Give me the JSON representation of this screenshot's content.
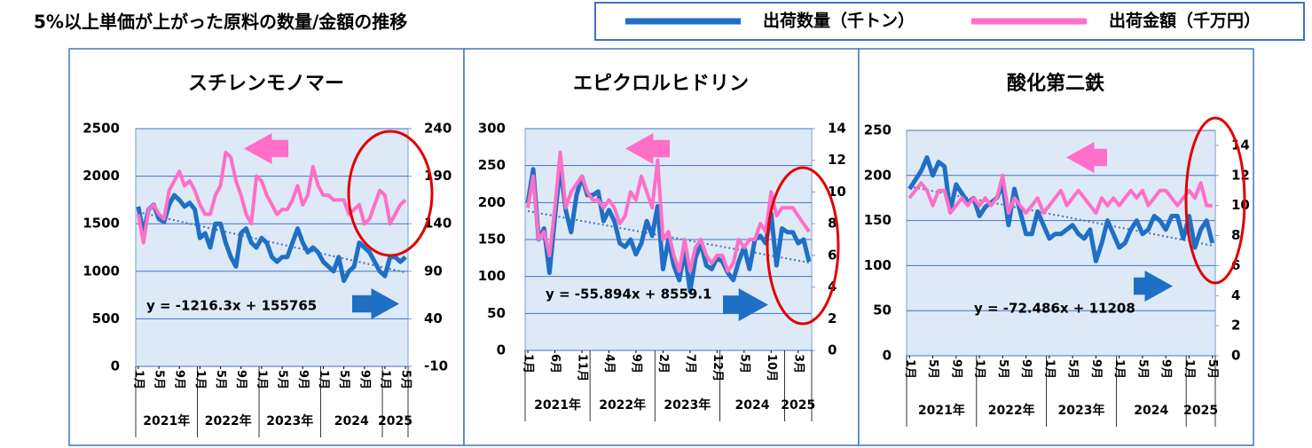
{
  "title": "5%以上単価が上がった原料の数量/金額の推移",
  "legend": [
    {
      "name": "出荷数量（千トン）",
      "color": "#1f6fc5"
    },
    {
      "name": "出荷金額（千万円）",
      "color": "#ff6ec7"
    }
  ],
  "chart_data": [
    {
      "type": "line",
      "title": "スチレンモノマー",
      "trend_label": "y = -1216.3x + 155765",
      "categories": [
        "1月",
        null,
        null,
        null,
        "5月",
        null,
        null,
        null,
        "9月",
        null,
        null,
        null,
        "1月",
        null,
        null,
        null,
        "5月",
        null,
        null,
        null,
        "9月",
        null,
        null,
        null,
        "1月",
        null,
        null,
        null,
        "5月",
        null,
        null,
        null,
        "9月",
        null,
        null,
        null,
        "1月",
        null,
        null,
        null,
        "5月",
        null,
        null,
        null,
        "9月",
        null,
        null,
        null,
        "1月",
        null,
        null,
        null,
        "5月"
      ],
      "years": [
        "2021年",
        "2022年",
        "2023年",
        "2024",
        "2025"
      ],
      "ylim": [
        0,
        2500
      ],
      "yticks": [
        0,
        500,
        1000,
        1500,
        2000,
        2500
      ],
      "y2lim": [
        -10,
        240
      ],
      "y2ticks": [
        -10,
        40,
        90,
        140,
        190,
        240
      ],
      "series": [
        {
          "values": [
            1680,
            1400,
            1650,
            1700,
            1550,
            1520,
            1700,
            1800,
            1750,
            1680,
            1720,
            1650,
            1350,
            1400,
            1250,
            1500,
            1500,
            1300,
            1150,
            1050,
            1400,
            1450,
            1300,
            1250,
            1350,
            1300,
            1150,
            1100,
            1150,
            1150,
            1300,
            1450,
            1300,
            1200,
            1250,
            1200,
            1100,
            1050,
            1000,
            1150,
            900,
            1000,
            1050,
            1300,
            1250,
            1200,
            1100,
            1000,
            950,
            1150,
            1150,
            1100,
            1150
          ]
        },
        {
          "axis": "y2",
          "values": [
            150,
            120,
            155,
            160,
            150,
            145,
            175,
            185,
            195,
            180,
            185,
            175,
            160,
            150,
            150,
            170,
            180,
            215,
            210,
            185,
            170,
            150,
            140,
            190,
            185,
            170,
            160,
            150,
            155,
            155,
            165,
            180,
            160,
            170,
            200,
            180,
            170,
            170,
            165,
            165,
            165,
            150,
            155,
            160,
            140,
            145,
            160,
            175,
            170,
            140,
            150,
            160,
            165
          ]
        }
      ]
    },
    {
      "type": "line",
      "title": "エピクロルヒドリン",
      "trend_label": "y = -55.894x + 8559.1",
      "categories": [
        "1月",
        null,
        null,
        null,
        null,
        "6月",
        null,
        null,
        null,
        null,
        "11月",
        null,
        null,
        null,
        null,
        "4月",
        null,
        null,
        null,
        null,
        "9月",
        null,
        null,
        null,
        null,
        "2月",
        null,
        null,
        null,
        null,
        "7月",
        null,
        null,
        null,
        null,
        "12月",
        null,
        null,
        null,
        null,
        "5月",
        null,
        null,
        null,
        null,
        "10月",
        null,
        null,
        null,
        null,
        "3月",
        null,
        null
      ],
      "years": [
        "2021年",
        "2022年",
        "2023年",
        "2024",
        "2025"
      ],
      "ylim": [
        0,
        300
      ],
      "yticks": [
        0,
        50,
        100,
        150,
        200,
        250,
        300
      ],
      "y2lim": [
        0,
        14
      ],
      "y2ticks": [
        0,
        2,
        4,
        6,
        8,
        10,
        12,
        14
      ],
      "series": [
        {
          "values": [
            200,
            245,
            150,
            165,
            105,
            180,
            250,
            190,
            160,
            210,
            235,
            210,
            210,
            215,
            175,
            190,
            175,
            145,
            140,
            150,
            130,
            145,
            175,
            155,
            195,
            110,
            150,
            115,
            95,
            135,
            80,
            125,
            145,
            115,
            110,
            125,
            120,
            105,
            95,
            120,
            140,
            110,
            150,
            155,
            145,
            185,
            115,
            165,
            160,
            160,
            145,
            150,
            120
          ]
        },
        {
          "axis": "y2",
          "values": [
            9,
            11,
            7,
            7.5,
            6,
            9,
            12.5,
            9,
            10,
            10.5,
            11,
            10,
            9.5,
            9.5,
            9,
            9.5,
            9,
            8,
            8.5,
            10,
            9.5,
            11,
            10,
            9,
            12,
            7,
            7.5,
            6,
            5,
            7,
            5,
            6.5,
            7,
            6,
            5.5,
            6,
            6,
            5,
            5.5,
            7,
            6.5,
            7,
            7,
            8,
            7.5,
            10,
            8.5,
            9,
            9,
            9,
            8.5,
            8,
            7.5
          ]
        }
      ]
    },
    {
      "type": "line",
      "title": "酸化第二鉄",
      "trend_label": "y = -72.486x + 11208",
      "categories": [
        "1月",
        null,
        null,
        null,
        "5月",
        null,
        null,
        null,
        "9月",
        null,
        null,
        null,
        "1月",
        null,
        null,
        null,
        "5月",
        null,
        null,
        null,
        "9月",
        null,
        null,
        null,
        "1月",
        null,
        null,
        null,
        "5月",
        null,
        null,
        null,
        "9月",
        null,
        null,
        null,
        "1月",
        null,
        null,
        null,
        "5月",
        null,
        null,
        null,
        "9月",
        null,
        null,
        null,
        "1月",
        null,
        null,
        null,
        "5月"
      ],
      "years": [
        "2021年",
        "2022年",
        "2023年",
        "2024",
        "2025"
      ],
      "ylim": [
        0,
        250
      ],
      "yticks": [
        0,
        50,
        100,
        150,
        200,
        250
      ],
      "y2lim": [
        0,
        15
      ],
      "y2ticks": [
        0,
        2,
        4,
        6,
        8,
        10,
        12,
        14
      ],
      "series": [
        {
          "values": [
            185,
            195,
            205,
            220,
            200,
            215,
            210,
            160,
            190,
            180,
            170,
            175,
            155,
            165,
            170,
            175,
            190,
            145,
            185,
            160,
            135,
            135,
            160,
            145,
            130,
            135,
            135,
            140,
            145,
            135,
            130,
            140,
            105,
            125,
            150,
            135,
            120,
            125,
            140,
            150,
            135,
            140,
            155,
            150,
            140,
            155,
            155,
            130,
            155,
            120,
            140,
            150,
            125
          ]
        },
        {
          "axis": "y2",
          "values": [
            10.5,
            11,
            11.5,
            11,
            10,
            11,
            11,
            9.5,
            10,
            10.5,
            10,
            10.5,
            10,
            10.5,
            10,
            10.5,
            12,
            9.5,
            10.5,
            10,
            9.5,
            10,
            10.5,
            9.5,
            10,
            10.5,
            11,
            10,
            10.5,
            11,
            10.5,
            10,
            9.5,
            10.5,
            10,
            10.5,
            10,
            10.5,
            11,
            10.5,
            11,
            10,
            10.5,
            11,
            11,
            10.5,
            10,
            10.5,
            11,
            10.5,
            11.5,
            10,
            10
          ]
        }
      ]
    }
  ]
}
